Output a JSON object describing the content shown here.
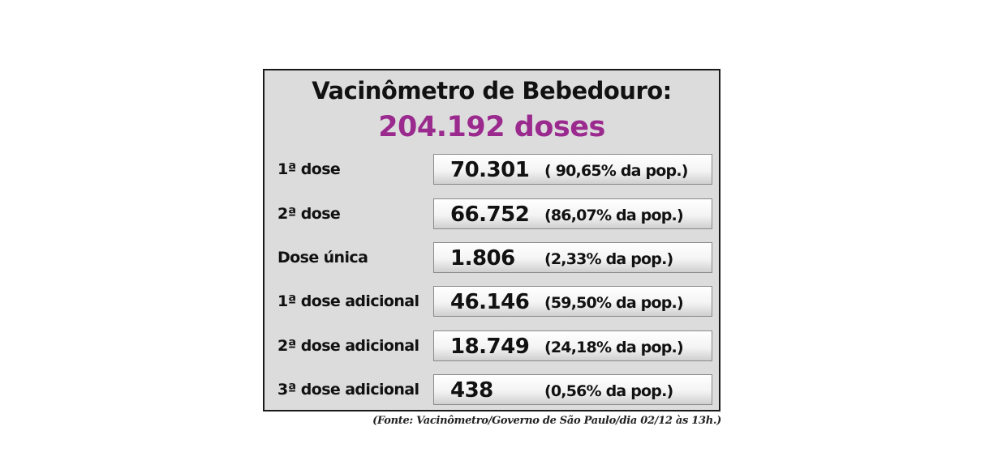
{
  "title": "Vacinômetro de Bebedouro:",
  "total": "204.192 doses",
  "rows": [
    {
      "label": "1ª dose",
      "value": "70.301",
      "percent": "( 90,65% da pop.)"
    },
    {
      "label": "2ª dose",
      "value": "66.752",
      "percent": "(86,07% da pop.)"
    },
    {
      "label": "Dose única",
      "value": "1.806",
      "percent": "(2,33% da pop.)"
    },
    {
      "label": "1ª dose adicional",
      "value": "46.146",
      "percent": "(59,50% da pop.)"
    },
    {
      "label": "2ª dose adicional",
      "value": "18.749",
      "percent": "(24,18% da pop.)"
    },
    {
      "label": "3ª dose adicional",
      "value": "438",
      "percent": "(0,56% da pop.)"
    }
  ],
  "source": "(Fonte: Vacinômetro/Governo de São Paulo/dia 02/12 às 13h.)",
  "colors": {
    "total": "#9b2a8e",
    "panel": "#dcdcdd",
    "text": "#111111"
  }
}
